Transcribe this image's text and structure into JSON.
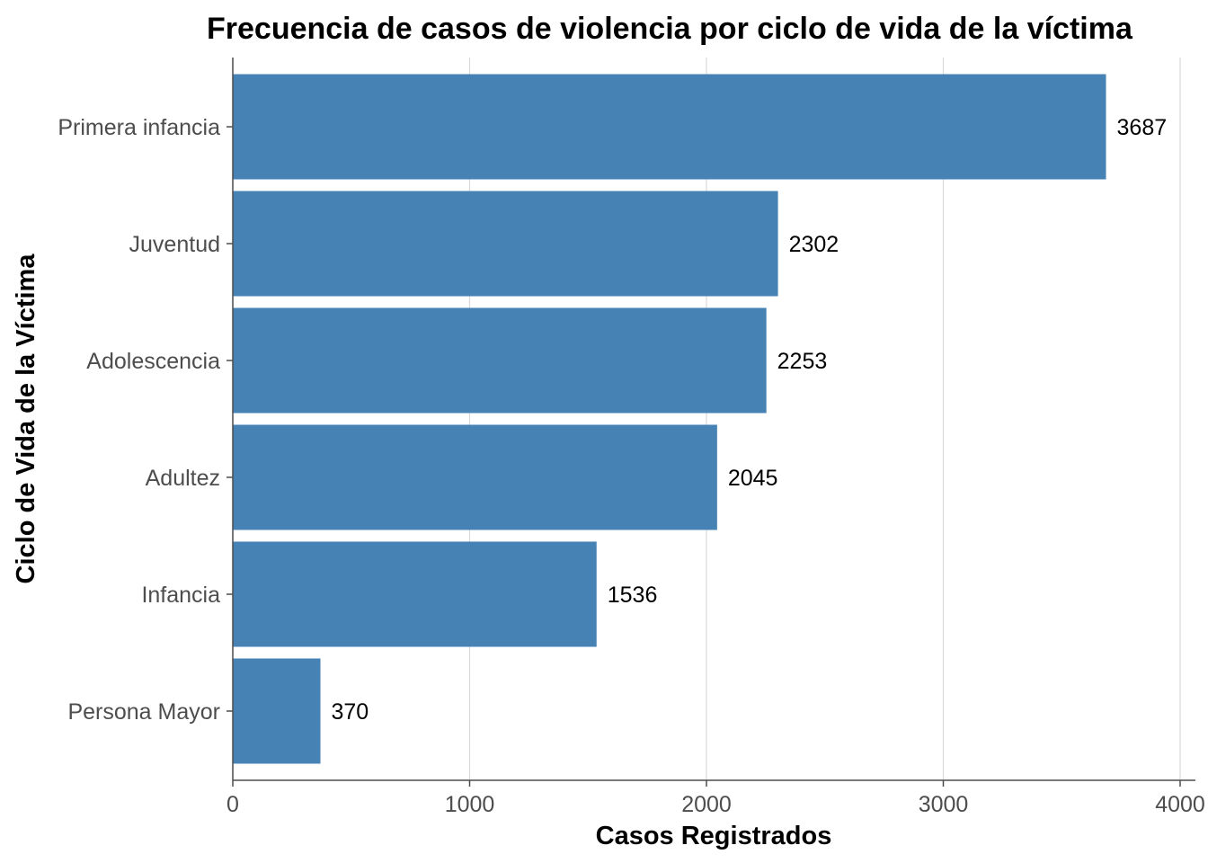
{
  "chart_data": {
    "type": "bar",
    "orientation": "horizontal",
    "title": "Frecuencia de casos de violencia por ciclo de vida de la víctima",
    "xlabel": "Casos Registrados",
    "ylabel": "Ciclo de Vida de la Víctima",
    "categories": [
      "Primera infancia",
      "Juventud",
      "Adolescencia",
      "Adultez",
      "Infancia",
      "Persona Mayor"
    ],
    "values": [
      3687,
      2302,
      2253,
      2045,
      1536,
      370
    ],
    "data_labels": [
      "3687",
      "2302",
      "2253",
      "2045",
      "1536",
      "370"
    ],
    "x_ticks": [
      0,
      1000,
      2000,
      3000,
      4000
    ],
    "x_tick_labels": [
      "0",
      "1000",
      "2000",
      "3000",
      "4000"
    ],
    "xlim": [
      0,
      4000
    ],
    "grid": "vertical major",
    "legend": "none",
    "bar_color": "#4682b4"
  }
}
